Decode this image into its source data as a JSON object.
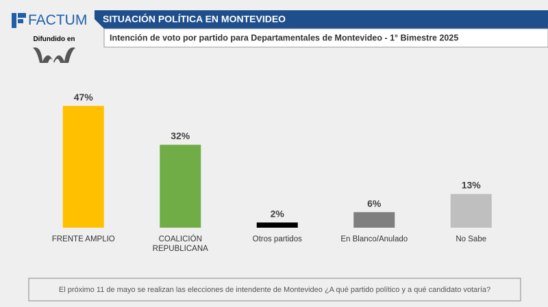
{
  "logo": {
    "name": "FACTUM",
    "tagline": "Difundido en"
  },
  "chart_data": {
    "type": "bar",
    "title": "SITUACIÓN POLÍTICA EN MONTEVIDEO",
    "subtitle": "Intención de voto por partido para Departamentales de Montevideo - 1° Bimestre 2025",
    "categories": [
      "FRENTE AMPLIO",
      "COALICIÓN REPUBLICANA",
      "Otros partidos",
      "En Blanco/Anulado",
      "No Sabe"
    ],
    "values": [
      47,
      32,
      2,
      6,
      13
    ],
    "value_labels": [
      "47%",
      "32%",
      "2%",
      "6%",
      "13%"
    ],
    "colors": [
      "#ffc000",
      "#70ad47",
      "#000000",
      "#7f7f7f",
      "#bfbfbf"
    ],
    "footnote": "El próximo 11 de mayo se realizan las elecciones de intendente de Montevideo ¿A qué partido político y a qué candidato votaría?"
  }
}
